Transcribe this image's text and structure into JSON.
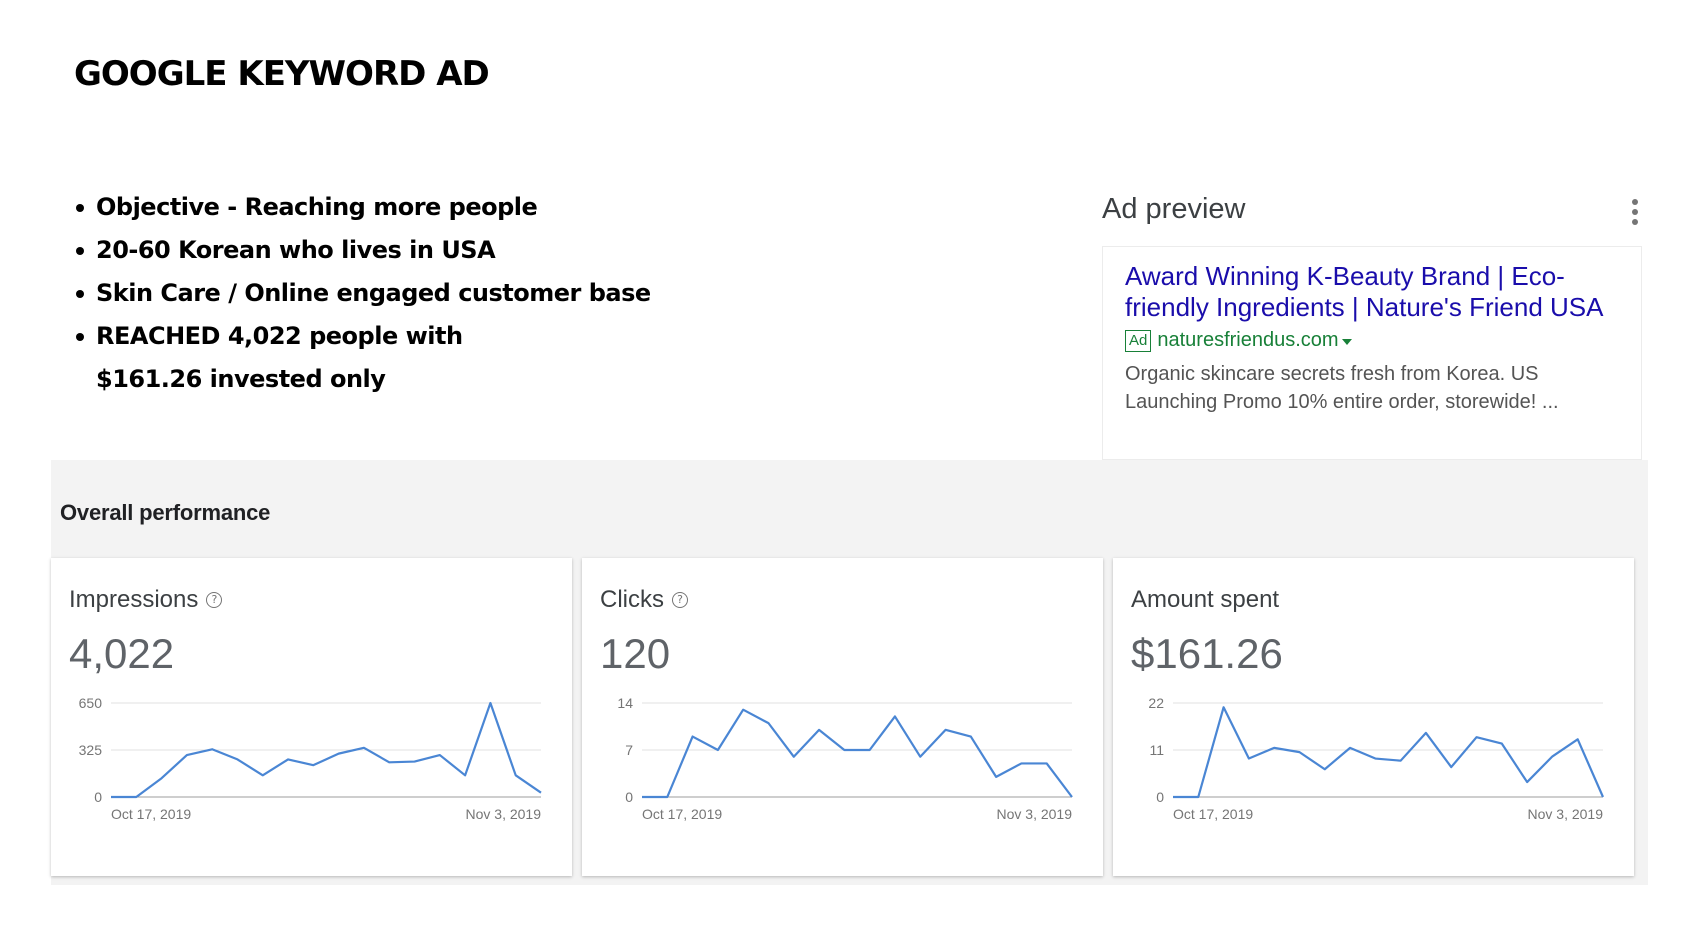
{
  "slide": {
    "title": "GOOGLE KEYWORD AD",
    "bullets": [
      "Objective - Reaching more people",
      "20-60 Korean who lives in USA",
      "Skin Care / Online engaged customer base",
      "REACHED 4,022 people with $161.26 invested only"
    ]
  },
  "ad_preview": {
    "title": "Ad preview",
    "menu_icon": "more-vert-icon",
    "headline": "Award Winning K-Beauty Brand | Eco-friendly Ingredients | Nature's Friend USA",
    "badge": "Ad",
    "display_url": "naturesfriendus.com",
    "description": "Organic skincare secrets fresh from Korea. US Launching Promo 10% entire order, storewide! ...",
    "colors": {
      "headline": "#1a0dab",
      "url": "#188038",
      "description": "#545454"
    }
  },
  "performance": {
    "title": "Overall performance",
    "cards": [
      {
        "label": "Impressions",
        "value": "4,022",
        "has_help_icon": true,
        "help_icon": "?"
      },
      {
        "label": "Clicks",
        "value": "120",
        "has_help_icon": true,
        "help_icon": "?"
      },
      {
        "label": "Amount spent",
        "value": "$161.26",
        "has_help_icon": false
      }
    ]
  },
  "chart_data": [
    {
      "type": "line",
      "title": "Impressions",
      "x_start_label": "Oct 17, 2019",
      "x_end_label": "Nov 3, 2019",
      "y_ticks": [
        0,
        325,
        650
      ],
      "ylim": [
        0,
        650
      ],
      "series": [
        {
          "values": [
            0,
            0,
            130,
            290,
            330,
            260,
            150,
            260,
            220,
            300,
            340,
            240,
            245,
            290,
            150,
            650,
            150,
            30
          ]
        }
      ],
      "line_color": "#4a86d4",
      "grid": true
    },
    {
      "type": "line",
      "title": "Clicks",
      "x_start_label": "Oct 17, 2019",
      "x_end_label": "Nov 3, 2019",
      "y_ticks": [
        0,
        7,
        14
      ],
      "ylim": [
        0,
        14
      ],
      "series": [
        {
          "values": [
            0,
            0,
            9,
            7,
            13,
            11,
            6,
            10,
            7,
            7,
            12,
            6,
            10,
            9,
            3,
            5,
            5,
            0
          ]
        }
      ],
      "line_color": "#4a86d4",
      "grid": true
    },
    {
      "type": "line",
      "title": "Amount spent",
      "x_start_label": "Oct 17, 2019",
      "x_end_label": "Nov 3, 2019",
      "y_ticks": [
        0,
        11,
        22
      ],
      "ylim": [
        0,
        22
      ],
      "series": [
        {
          "values": [
            0,
            0,
            21,
            9,
            11.5,
            10.5,
            6.5,
            11.5,
            9,
            8.5,
            15,
            7,
            14,
            12.5,
            3.5,
            9.5,
            13.5,
            0
          ]
        }
      ],
      "line_color": "#4a86d4",
      "grid": true
    }
  ]
}
